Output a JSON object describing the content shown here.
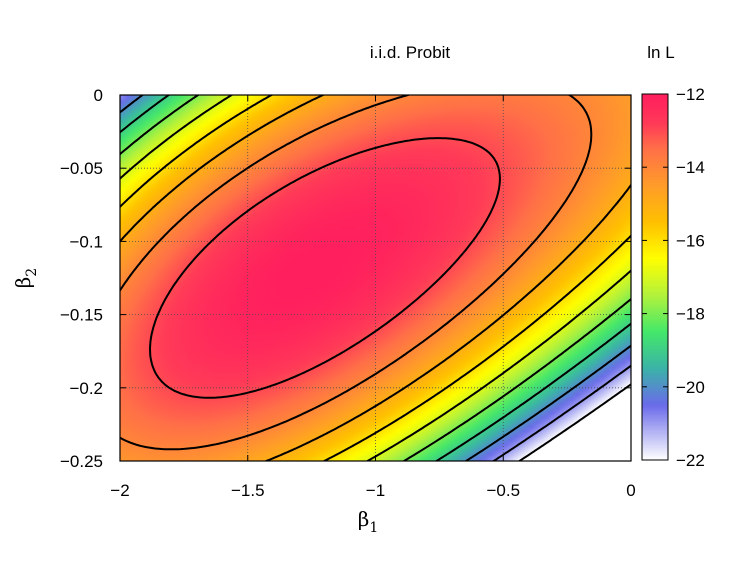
{
  "chart_data": {
    "type": "heatmap",
    "title": "i.i.d. Probit",
    "xlabel": {
      "symbol": "β",
      "subscript": "1"
    },
    "ylabel": {
      "symbol": "β",
      "subscript": "2"
    },
    "xlim": [
      -2,
      0
    ],
    "ylim": [
      -0.25,
      0
    ],
    "x_ticks": [
      -2,
      -1.5,
      -1,
      -0.5,
      0
    ],
    "x_tick_labels": [
      "−2",
      "−1.5",
      "−1",
      "−0.5",
      "0"
    ],
    "y_ticks": [
      0,
      -0.05,
      -0.1,
      -0.15,
      -0.2,
      -0.25
    ],
    "y_tick_labels": [
      "0",
      "−0.05",
      "−0.1",
      "−0.15",
      "−0.2",
      "−0.25"
    ],
    "grid": true,
    "surface": {
      "quantity": "ln L",
      "maximum": {
        "beta1": -1.25,
        "beta2": -0.12,
        "value": -12
      },
      "approx_max_value": -12,
      "min_shown_value": -22
    },
    "contour_levels": [
      -13,
      -14,
      -15,
      -16,
      -17,
      -18,
      -19,
      -20,
      -21,
      -22
    ],
    "colorbar": {
      "label": "ln L",
      "range": [
        -22,
        -12
      ],
      "ticks": [
        -12,
        -14,
        -16,
        -18,
        -20,
        -22
      ],
      "tick_labels": [
        "−12",
        "−14",
        "−16",
        "−18",
        "−20",
        "−22"
      ],
      "colors": [
        {
          "value": -22,
          "color": "#ffffff"
        },
        {
          "value": -20.5,
          "color": "#6b6bea"
        },
        {
          "value": -19.5,
          "color": "#3bb3a8"
        },
        {
          "value": -18.5,
          "color": "#44e86a"
        },
        {
          "value": -17.5,
          "color": "#b3f23c"
        },
        {
          "value": -16.5,
          "color": "#ffff00"
        },
        {
          "value": -15.5,
          "color": "#ffc000"
        },
        {
          "value": -14.5,
          "color": "#ff9c2a"
        },
        {
          "value": -13.5,
          "color": "#ff7048"
        },
        {
          "value": -12.8,
          "color": "#ff3a58"
        },
        {
          "value": -12,
          "color": "#ff1e5e"
        }
      ]
    }
  }
}
